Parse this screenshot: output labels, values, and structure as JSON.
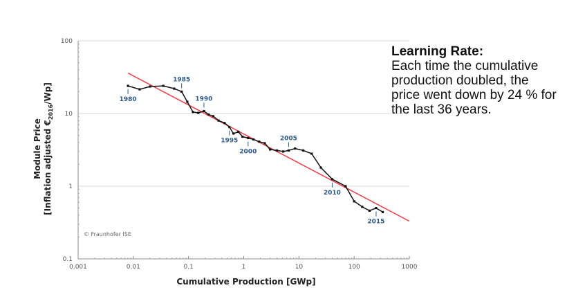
{
  "chart_data": {
    "type": "line",
    "title": "",
    "xlabel": "Cumulative Production [GWp]",
    "ylabel_line1": "Module Price",
    "ylabel_line2_prefix": "[Inflation adjusted €",
    "ylabel_line2_sub": "2016",
    "ylabel_line2_suffix": "/Wp]",
    "x_scale": "log",
    "y_scale": "log",
    "xlim": [
      0.001,
      1000
    ],
    "ylim": [
      0.1,
      100
    ],
    "x_ticks": [
      "0.001",
      "0.01",
      "0.1",
      "1",
      "10",
      "100",
      "1000"
    ],
    "y_ticks": [
      "0.1",
      "1",
      "10",
      "100"
    ],
    "grid": "horizontal",
    "series": [
      {
        "color": "#111111",
        "points": [
          [
            0.008,
            24
          ],
          [
            0.013,
            21.5
          ],
          [
            0.02,
            23.5
          ],
          [
            0.035,
            24
          ],
          [
            0.055,
            22
          ],
          [
            0.075,
            20
          ],
          [
            0.095,
            14.5
          ],
          [
            0.12,
            10.5
          ],
          [
            0.15,
            10.2
          ],
          [
            0.19,
            10.8
          ],
          [
            0.23,
            9.7
          ],
          [
            0.28,
            9.2
          ],
          [
            0.35,
            8.0
          ],
          [
            0.45,
            7.4
          ],
          [
            0.55,
            6.5
          ],
          [
            0.65,
            5.3
          ],
          [
            0.8,
            5.6
          ],
          [
            0.95,
            4.8
          ],
          [
            1.2,
            4.6
          ],
          [
            1.5,
            4.4
          ],
          [
            1.9,
            4.1
          ],
          [
            2.4,
            3.9
          ],
          [
            3.0,
            3.2
          ],
          [
            4.0,
            3.1
          ],
          [
            5.2,
            3.0
          ],
          [
            6.5,
            3.1
          ],
          [
            8.5,
            3.3
          ],
          [
            12,
            3.1
          ],
          [
            17,
            2.8
          ],
          [
            25,
            1.8
          ],
          [
            40,
            1.25
          ],
          [
            70,
            1.0
          ],
          [
            100,
            0.62
          ],
          [
            140,
            0.52
          ],
          [
            190,
            0.46
          ],
          [
            250,
            0.5
          ],
          [
            330,
            0.44
          ]
        ]
      },
      {
        "color": "#e8474f",
        "type": "fit",
        "points": [
          [
            0.008,
            36
          ],
          [
            1000,
            0.33
          ]
        ]
      }
    ],
    "year_labels": [
      {
        "label": "1980",
        "x": 0.008,
        "y": 24,
        "side": "below"
      },
      {
        "label": "1985",
        "x": 0.075,
        "y": 20,
        "side": "above"
      },
      {
        "label": "1990",
        "x": 0.19,
        "y": 10.8,
        "side": "above"
      },
      {
        "label": "1995",
        "x": 0.55,
        "y": 6.5,
        "side": "below"
      },
      {
        "label": "2000",
        "x": 1.2,
        "y": 4.6,
        "side": "below"
      },
      {
        "label": "2005",
        "x": 6.5,
        "y": 3.1,
        "side": "above"
      },
      {
        "label": "2010",
        "x": 40,
        "y": 1.25,
        "side": "below"
      },
      {
        "label": "2015",
        "x": 250,
        "y": 0.5,
        "side": "below"
      }
    ],
    "copyright": "© Fraunhofer ISE"
  },
  "callout": {
    "heading": "Learning Rate:",
    "body": "Each time the cumulative production doubled, the price went down by 24 % for the last 36 years."
  }
}
